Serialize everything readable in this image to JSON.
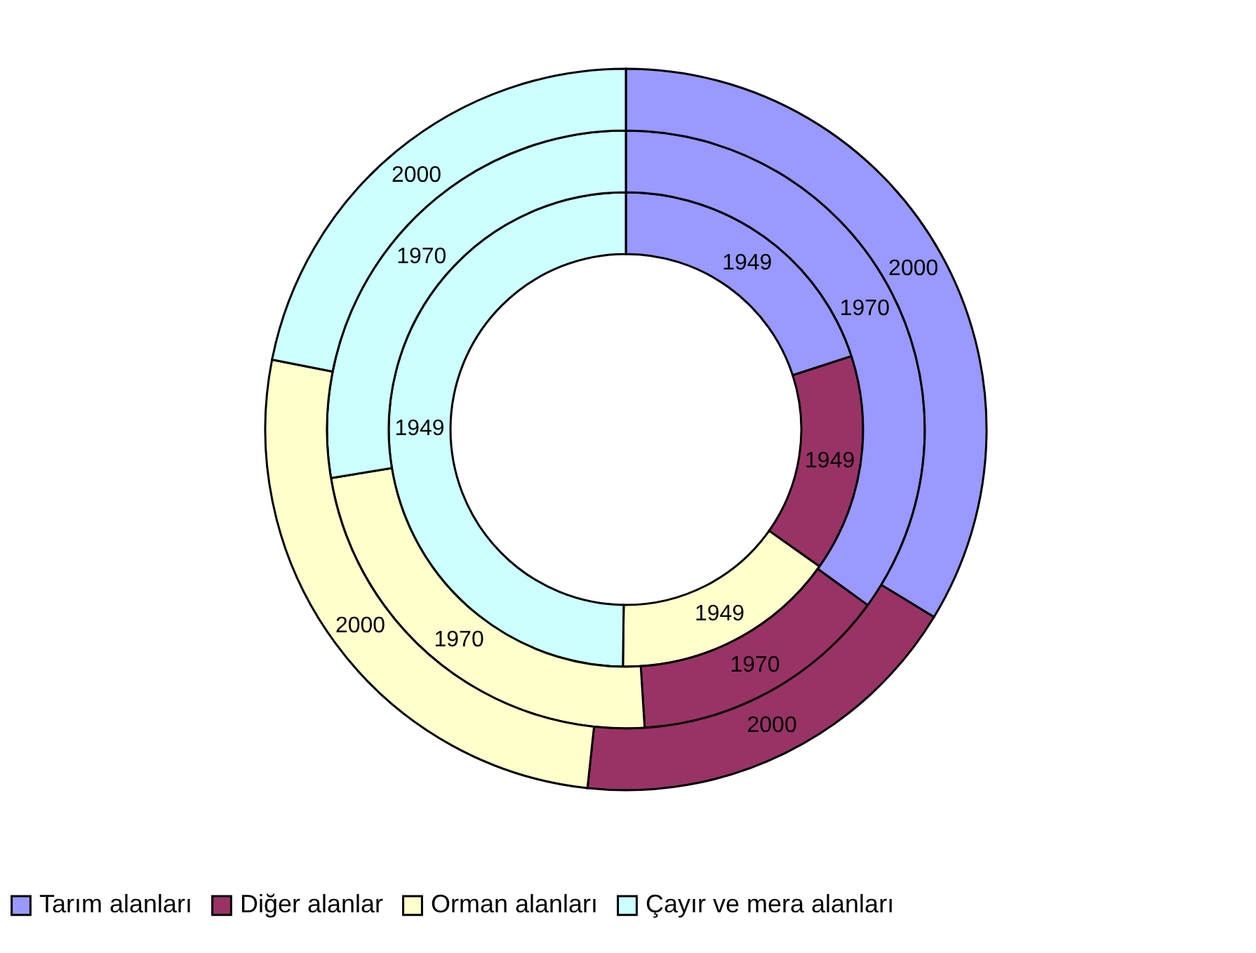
{
  "chart_data": {
    "type": "donut",
    "categories": [
      "Tarım alanları",
      "Diğer alanlar",
      "Orman alanları",
      "Çayır ve mera alanları"
    ],
    "colors": [
      "#9999ff",
      "#993366",
      "#ffffcc",
      "#ccffff"
    ],
    "series": [
      {
        "name": "1949",
        "values": [
          20,
          14.8,
          15.4,
          49.8
        ]
      },
      {
        "name": "1970",
        "values": [
          35,
          14,
          23.4,
          27.6
        ]
      },
      {
        "name": "2000",
        "values": [
          33.7,
          18,
          26.4,
          21.9
        ]
      }
    ],
    "legend": "bottom"
  }
}
